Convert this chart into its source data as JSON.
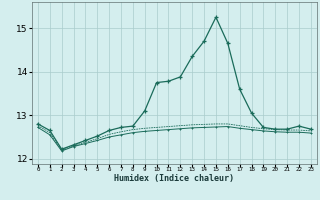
{
  "xlabel": "Humidex (Indice chaleur)",
  "background_color": "#d4eeee",
  "grid_color": "#aacccc",
  "line_color": "#1a6b5a",
  "x": [
    0,
    1,
    2,
    3,
    4,
    5,
    6,
    7,
    8,
    9,
    10,
    11,
    12,
    13,
    14,
    15,
    16,
    17,
    18,
    19,
    20,
    21,
    22,
    23
  ],
  "line1": [
    12.8,
    12.65,
    12.22,
    12.32,
    12.42,
    12.52,
    12.65,
    12.72,
    12.75,
    13.1,
    13.75,
    13.78,
    13.88,
    14.35,
    14.7,
    15.25,
    14.65,
    13.6,
    13.05,
    12.72,
    12.68,
    12.68,
    12.75,
    12.68
  ],
  "line2": [
    12.72,
    12.55,
    12.18,
    12.28,
    12.35,
    12.42,
    12.5,
    12.55,
    12.6,
    12.63,
    12.65,
    12.67,
    12.69,
    12.71,
    12.72,
    12.73,
    12.74,
    12.7,
    12.67,
    12.64,
    12.62,
    12.61,
    12.61,
    12.59
  ],
  "line3": [
    12.76,
    12.6,
    12.2,
    12.3,
    12.38,
    12.46,
    12.56,
    12.62,
    12.67,
    12.7,
    12.72,
    12.74,
    12.76,
    12.78,
    12.79,
    12.8,
    12.8,
    12.76,
    12.72,
    12.69,
    12.67,
    12.66,
    12.66,
    12.64
  ],
  "ylim": [
    11.88,
    15.6
  ],
  "yticks": [
    12,
    13,
    14,
    15
  ],
  "xlim": [
    -0.5,
    23.5
  ]
}
